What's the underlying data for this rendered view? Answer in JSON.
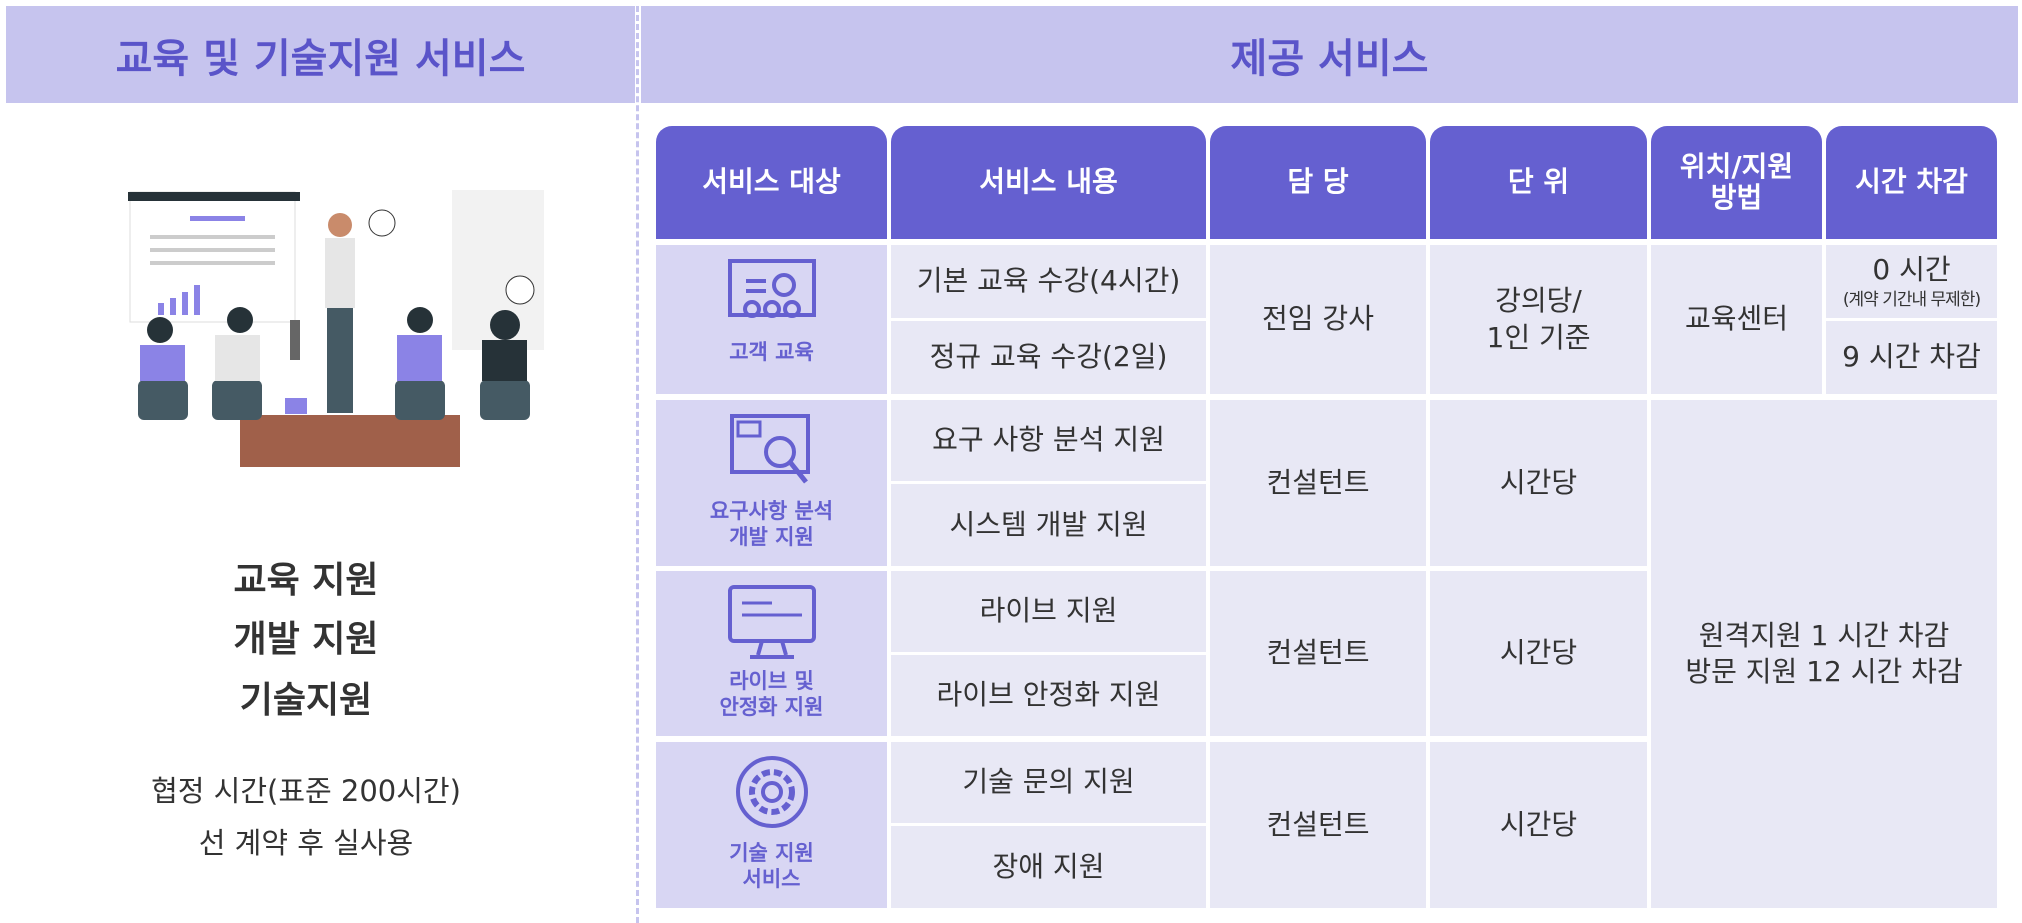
{
  "header": {
    "left_title": "교육 및 기술지원 서비스",
    "right_title": "제공 서비스"
  },
  "left": {
    "items": [
      "교육 지원",
      "개발 지원",
      "기술지원"
    ],
    "notes": [
      "협정 시간(표준 200시간)",
      "선 계약 후 실사용"
    ]
  },
  "table": {
    "columns": [
      "서비스 대상",
      "서비스 내용",
      "담 당",
      "단 위",
      "위치/지원\n방법",
      "시간 차감"
    ],
    "groups": [
      {
        "target": "고객 교육",
        "contents": [
          "기본 교육 수강(4시간)",
          "정규 교육 수강(2일)"
        ],
        "owner": "전임 강사",
        "unit": "강의당/\n1인 기준",
        "location": "교육센터",
        "time": [
          {
            "text": "0 시간",
            "note": "(계약 기간내 무제한)"
          },
          {
            "text": "9 시간 차감"
          }
        ]
      },
      {
        "target": "요구사항 분석\n개발 지원",
        "contents": [
          "요구 사항 분석 지원",
          "시스템 개발 지원"
        ],
        "owner": "컨설턴트",
        "unit": "시간당"
      },
      {
        "target": "라이브 및\n안정화 지원",
        "contents": [
          "라이브 지원",
          "라이브 안정화 지원"
        ],
        "owner": "컨설턴트",
        "unit": "시간당"
      },
      {
        "target": "기술 지원\n서비스",
        "contents": [
          "기술 문의 지원",
          "장애 지원"
        ],
        "owner": "컨설턴트",
        "unit": "시간당"
      }
    ],
    "remote": "원격지원 1 시간 차감\n방문 지원 12 시간 차감"
  }
}
